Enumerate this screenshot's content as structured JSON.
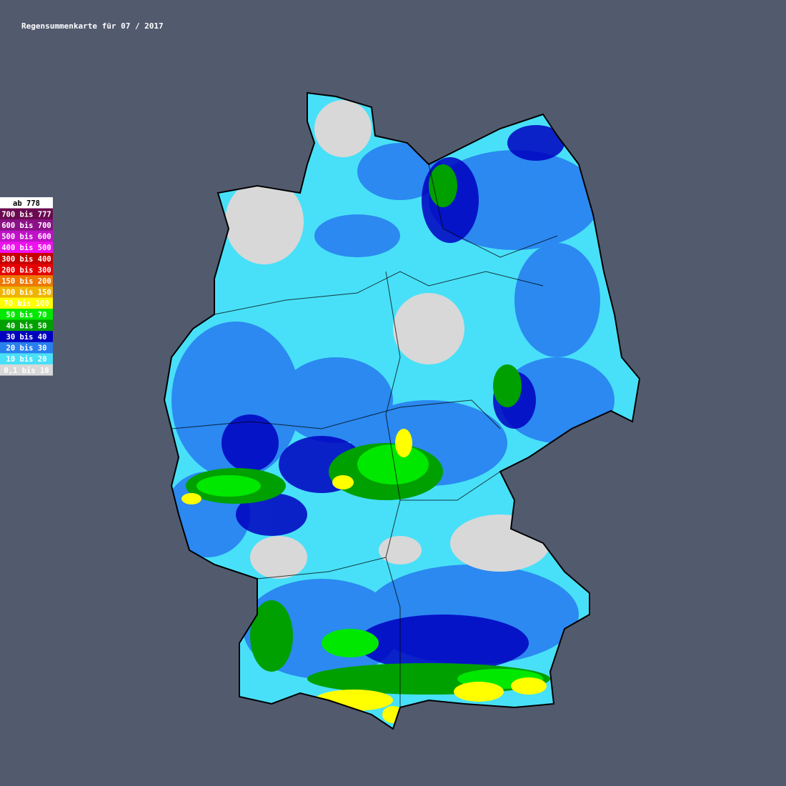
{
  "title": "Regensummenkarte für 07 / 2017",
  "legend": [
    {
      "label": "ab 778",
      "color": "#ffffff",
      "text_color": "#000000"
    },
    {
      "label": "700 bis 777",
      "color": "#6a0a50",
      "text_color": "#ffffff"
    },
    {
      "label": "600 bis 700",
      "color": "#8c1088",
      "text_color": "#ffffff"
    },
    {
      "label": "500 bis 600",
      "color": "#c010c8",
      "text_color": "#ffffff"
    },
    {
      "label": "400 bis 500",
      "color": "#f010f0",
      "text_color": "#ffffff"
    },
    {
      "label": "300 bis 400",
      "color": "#c80000",
      "text_color": "#ffffff"
    },
    {
      "label": "200 bis 300",
      "color": "#e80000",
      "text_color": "#ffffff"
    },
    {
      "label": "150 bis 200",
      "color": "#f07800",
      "text_color": "#ffffff"
    },
    {
      "label": "100 bis 150",
      "color": "#f0b400",
      "text_color": "#ffffff"
    },
    {
      "label": "70 bis 100",
      "color": "#ffff00",
      "text_color": "#ffffff"
    },
    {
      "label": "50 bis 70",
      "color": "#00e800",
      "text_color": "#ffffff"
    },
    {
      "label": "40 bis 50",
      "color": "#00a000",
      "text_color": "#ffffff"
    },
    {
      "label": "30 bis 40",
      "color": "#0000c0",
      "text_color": "#ffffff"
    },
    {
      "label": "20 bis 30",
      "color": "#2880f0",
      "text_color": "#ffffff"
    },
    {
      "label": "10 bis 20",
      "color": "#48e0f8",
      "text_color": "#ffffff"
    },
    {
      "label": "0,1 bis 10",
      "color": "#d8d8d8",
      "text_color": "#ffffff"
    }
  ]
}
